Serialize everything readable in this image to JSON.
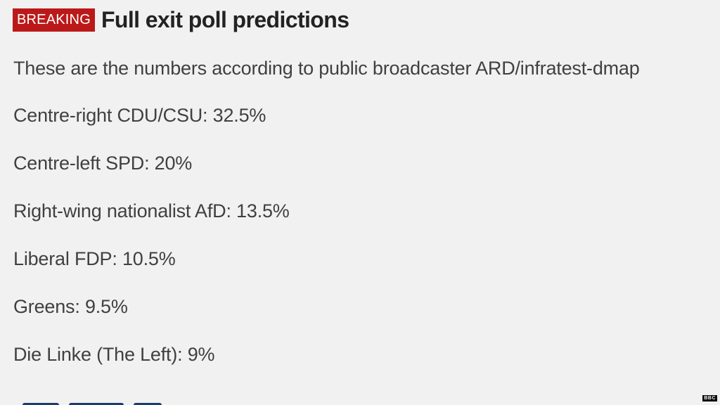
{
  "header": {
    "badge": "BREAKING",
    "title": "Full exit poll predictions"
  },
  "intro": "These are the numbers according to public broadcaster ARD/infratest-dmap",
  "results": [
    {
      "label": "Centre-right CDU/CSU: 32.5%"
    },
    {
      "label": "Centre-left SPD: 20%"
    },
    {
      "label": "Right-wing nationalist AfD: 13.5%"
    },
    {
      "label": "Liberal FDP: 10.5%"
    },
    {
      "label": "Greens: 9.5%"
    },
    {
      "label": "Die Linke (The Left): 9%"
    }
  ],
  "watermark": "BBC",
  "colors": {
    "background": "#f1f1f1",
    "badge": "#bb1919",
    "text": "#404040",
    "headline": "#222222"
  }
}
